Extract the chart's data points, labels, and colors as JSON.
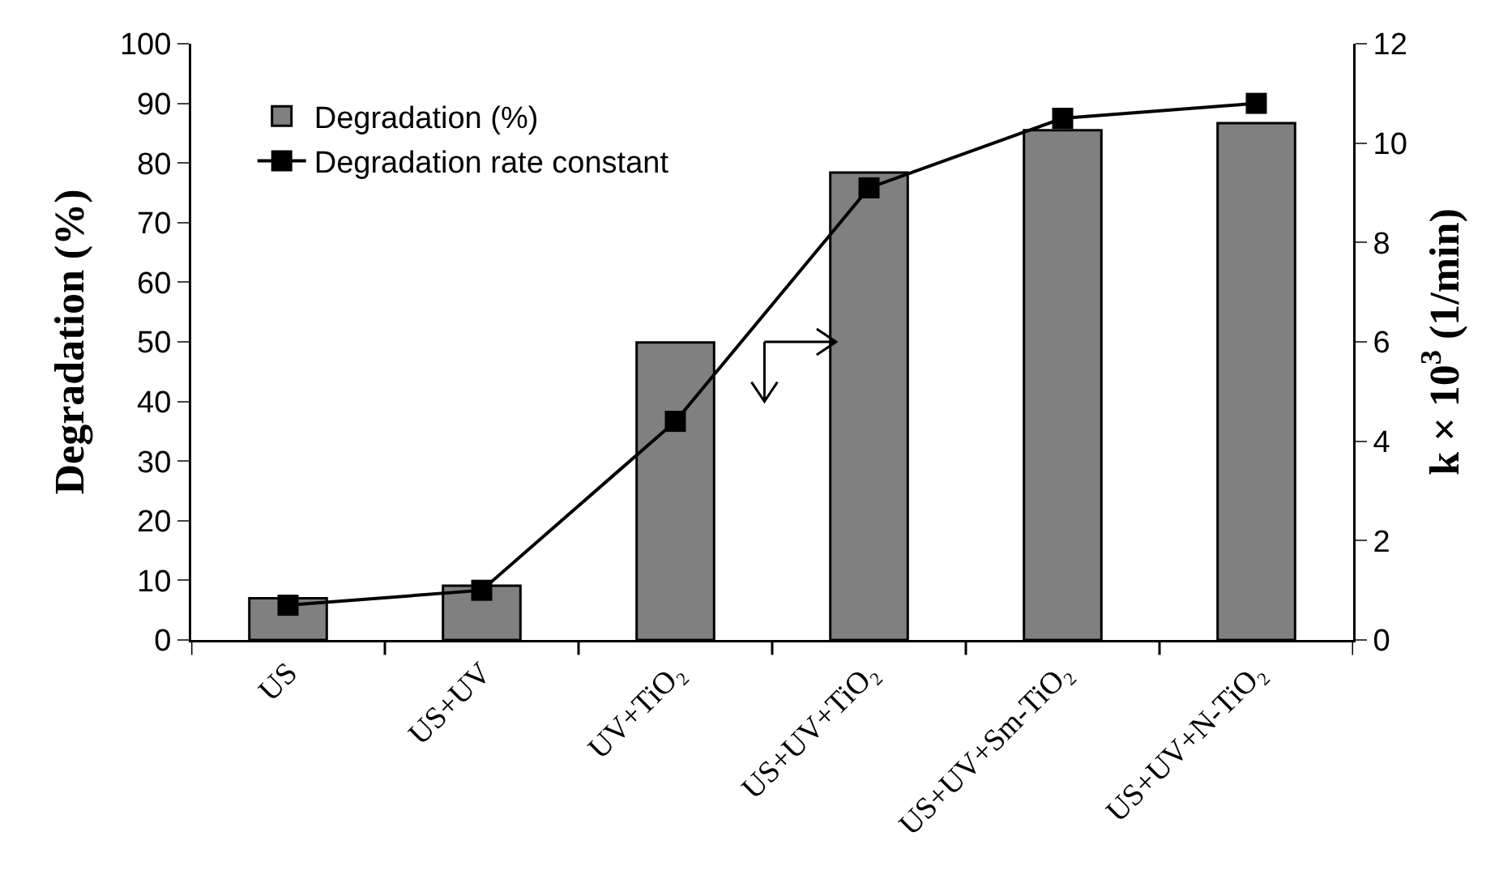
{
  "chart_data": {
    "type": "bar",
    "categories": [
      "US",
      "US+UV",
      "UV+TiO₂",
      "US+UV+TiO₂",
      "US+UV+Sm-TiO₂",
      "US+UV+N-TiO₂"
    ],
    "series": [
      {
        "name": "Degradation (%)",
        "color": "#808080",
        "values": [
          7,
          9.1,
          49.9,
          78.4,
          85.5,
          86.7
        ]
      },
      {
        "name": "Degradation rate constant",
        "type": "line",
        "axis": "y2",
        "color": "#000000",
        "marker": "square",
        "line_style": "solid",
        "values": [
          0.7,
          1.0,
          4.4,
          9.1,
          10.5,
          10.8
        ]
      }
    ],
    "ylabel": "Degradation (%)",
    "y2label": "k × 10$^{3}$ (1/min)",
    "ylim": [
      0,
      100
    ],
    "yticks": [
      0,
      10,
      20,
      30,
      40,
      50,
      60,
      70,
      80,
      90,
      100
    ],
    "y2lim": [
      0,
      12
    ],
    "y2ticks": [
      0,
      2,
      4,
      6,
      8,
      10,
      12
    ],
    "grid": false,
    "legend": "top left"
  }
}
